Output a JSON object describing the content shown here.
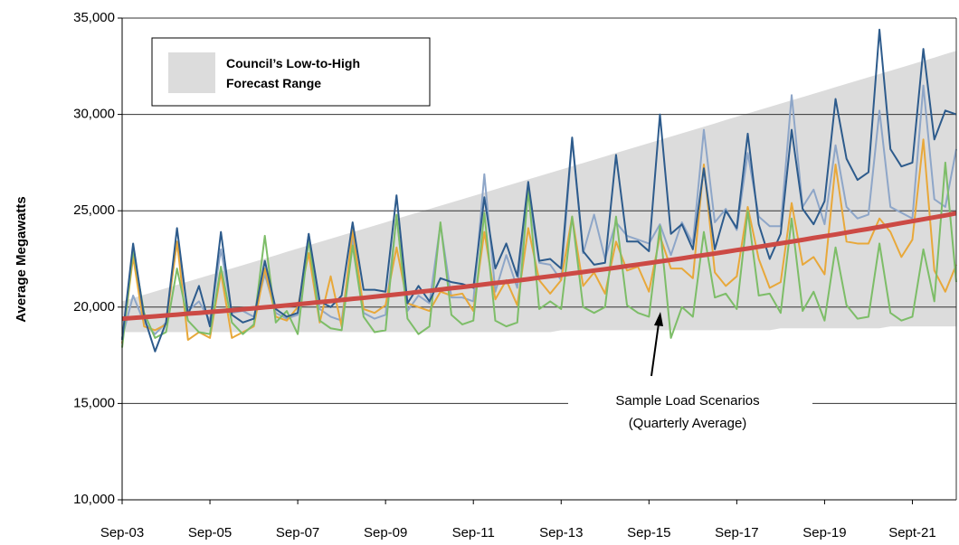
{
  "chart_data": {
    "type": "line",
    "y_label": "Average Megawatts",
    "categories": [
      "Sep-03",
      null,
      null,
      null,
      null,
      null,
      null,
      null,
      "Sep-05",
      null,
      null,
      null,
      null,
      null,
      null,
      null,
      "Sep-07",
      null,
      null,
      null,
      null,
      null,
      null,
      null,
      "Sep-09",
      null,
      null,
      null,
      null,
      null,
      null,
      null,
      "Sep-11",
      null,
      null,
      null,
      null,
      null,
      null,
      null,
      "Sep-13",
      null,
      null,
      null,
      null,
      null,
      null,
      null,
      "Sep-15",
      null,
      null,
      null,
      null,
      null,
      null,
      null,
      "Sep-17",
      null,
      null,
      null,
      null,
      null,
      null,
      null,
      "Sep-19",
      null,
      null,
      null,
      null,
      null,
      null,
      null,
      "Sept-21",
      null,
      null,
      null,
      null
    ],
    "ylim": [
      10000,
      35000
    ],
    "yticks": [
      {
        "value": 10000,
        "label": "10,000"
      },
      {
        "value": 15000,
        "label": "15,000"
      },
      {
        "value": 20000,
        "label": "20,000"
      },
      {
        "value": 25000,
        "label": "25,000"
      },
      {
        "value": 30000,
        "label": "30,000"
      },
      {
        "value": 35000,
        "label": "35,000"
      }
    ],
    "grid": true,
    "band": {
      "name": "Council’s Low-to-High Forecast Range",
      "color": "#dcdcdc",
      "low": [
        18700,
        18700,
        18700,
        18700,
        18700,
        18700,
        18700,
        18700,
        18700,
        18700,
        18700,
        18700,
        18700,
        18700,
        18700,
        18700,
        18700,
        18700,
        18700,
        18700,
        18700,
        18700,
        18700,
        18700,
        18700,
        18700,
        18700,
        18700,
        18700,
        18700,
        18700,
        18700,
        18700,
        18700,
        18700,
        18700,
        18700,
        18700,
        18700,
        18700,
        18800,
        18800,
        18800,
        18800,
        18800,
        18800,
        18800,
        18800,
        18800,
        18800,
        18800,
        18800,
        18800,
        18800,
        18800,
        18800,
        18800,
        18800,
        18800,
        18800,
        18900,
        18900,
        18900,
        18900,
        18900,
        18900,
        18900,
        18900,
        18900,
        18900,
        19000,
        19000,
        19000,
        19000,
        19000,
        19000,
        19000
      ],
      "high": [
        20300,
        20470,
        20640,
        20810,
        20980,
        21160,
        21330,
        21500,
        21670,
        21840,
        22010,
        22180,
        22350,
        22520,
        22690,
        22870,
        23040,
        23210,
        23380,
        23550,
        23720,
        23890,
        24060,
        24230,
        24400,
        24580,
        24750,
        24920,
        25090,
        25260,
        25430,
        25600,
        25770,
        25940,
        26110,
        26290,
        26460,
        26630,
        26800,
        26970,
        27140,
        27310,
        27480,
        27650,
        27820,
        28000,
        28170,
        28340,
        28510,
        28680,
        28850,
        29020,
        29190,
        29360,
        29530,
        29710,
        29880,
        30050,
        30220,
        30390,
        30560,
        30730,
        30900,
        31070,
        31240,
        31420,
        31590,
        31760,
        31930,
        32100,
        32270,
        32440,
        32610,
        32780,
        32950,
        33130,
        33300
      ]
    },
    "series": [
      {
        "color": "#8ea6c8",
        "line_width": 2,
        "values": [
          18400,
          20600,
          19200,
          18600,
          19200,
          23400,
          19800,
          20300,
          19300,
          23000,
          19700,
          19800,
          19500,
          21700,
          19700,
          19400,
          19600,
          23800,
          19900,
          19500,
          19300,
          23600,
          19700,
          19400,
          19600,
          24700,
          19800,
          20600,
          20200,
          24300,
          20500,
          20500,
          20300,
          26900,
          20800,
          22700,
          21000,
          26000,
          22300,
          22200,
          21400,
          28700,
          22800,
          24800,
          22500,
          24400,
          23700,
          23500,
          23300,
          24300,
          22700,
          24400,
          23300,
          29200,
          24400,
          25100,
          24000,
          28000,
          24700,
          24200,
          24200,
          31000,
          25200,
          26100,
          24300,
          28400,
          25200,
          24600,
          24800,
          30200,
          25200,
          24900,
          24600,
          31500,
          25600,
          25200,
          28200
        ]
      },
      {
        "color": "#e8a83a",
        "line_width": 2,
        "values": [
          18100,
          22600,
          19000,
          18800,
          19100,
          23400,
          18300,
          18700,
          18400,
          21800,
          18400,
          18700,
          19000,
          22000,
          19500,
          19300,
          20000,
          22800,
          19200,
          21600,
          19000,
          24000,
          19900,
          19700,
          20100,
          23100,
          20200,
          20000,
          19800,
          20800,
          20600,
          20700,
          19800,
          23900,
          20400,
          21400,
          20100,
          24100,
          21400,
          20700,
          21400,
          24700,
          21100,
          21800,
          20700,
          23400,
          21900,
          22100,
          20800,
          23700,
          22000,
          22000,
          21500,
          27400,
          21800,
          21100,
          21600,
          25200,
          22500,
          21000,
          21300,
          25400,
          22200,
          22600,
          21700,
          27400,
          23400,
          23300,
          23300,
          24600,
          23900,
          22600,
          23500,
          28700,
          21900,
          20800,
          22200
        ]
      },
      {
        "color": "#7dbd68",
        "line_width": 2,
        "values": [
          17900,
          23000,
          19700,
          18400,
          18700,
          22000,
          19300,
          18700,
          18600,
          22100,
          19200,
          18600,
          19100,
          23700,
          19200,
          19800,
          18600,
          23500,
          19300,
          18900,
          18800,
          23200,
          19500,
          18700,
          18800,
          24800,
          19400,
          18600,
          19000,
          24400,
          19600,
          19100,
          19300,
          24900,
          19300,
          19000,
          19200,
          26100,
          19900,
          20300,
          19900,
          24700,
          20000,
          19700,
          20000,
          24700,
          20100,
          19700,
          19500,
          24200,
          18400,
          20000,
          19500,
          23900,
          20500,
          20700,
          19900,
          25000,
          20600,
          20700,
          19700,
          24600,
          19800,
          20800,
          19300,
          23100,
          20100,
          19400,
          19500,
          23300,
          19700,
          19300,
          19500,
          23000,
          20300,
          27500,
          21300
        ]
      },
      {
        "color": "#2d5b8c",
        "line_width": 2,
        "values": [
          18300,
          23300,
          19500,
          17700,
          19200,
          24100,
          19600,
          21100,
          19000,
          23900,
          19600,
          19200,
          19400,
          22400,
          19900,
          19500,
          19700,
          23800,
          20300,
          20000,
          20600,
          24400,
          20900,
          20900,
          20800,
          25800,
          20200,
          21100,
          20300,
          21500,
          21300,
          21200,
          21000,
          25700,
          22000,
          23300,
          21600,
          26500,
          22400,
          22500,
          22000,
          28800,
          22900,
          22200,
          22300,
          27900,
          23400,
          23400,
          22900,
          30000,
          23800,
          24300,
          23000,
          27200,
          23000,
          25000,
          24100,
          29000,
          24300,
          22500,
          23800,
          29200,
          25100,
          24300,
          25500,
          30800,
          27700,
          26600,
          27000,
          34400,
          28200,
          27300,
          27500,
          33400,
          28700,
          30200,
          30000
        ]
      },
      {
        "color": "#cc4a45",
        "line_width": 5,
        "values": [
          19400,
          19440,
          19480,
          19520,
          19570,
          19610,
          19660,
          19700,
          19750,
          19790,
          19840,
          19890,
          19940,
          19990,
          20040,
          20090,
          20150,
          20200,
          20260,
          20310,
          20370,
          20430,
          20480,
          20540,
          20600,
          20660,
          20720,
          20790,
          20850,
          20910,
          20980,
          21040,
          21110,
          21180,
          21250,
          21310,
          21380,
          21450,
          21530,
          21600,
          21670,
          21750,
          21820,
          21900,
          21970,
          22050,
          22130,
          22210,
          22290,
          22370,
          22450,
          22530,
          22620,
          22700,
          22780,
          22870,
          22960,
          23040,
          23130,
          23220,
          23310,
          23400,
          23490,
          23590,
          23680,
          23770,
          23870,
          23970,
          24060,
          24160,
          24260,
          24360,
          24460,
          24560,
          24660,
          24760,
          24870
        ]
      }
    ],
    "annotation": {
      "lines": [
        "Sample Load Scenarios",
        "(Quarterly Average)"
      ]
    }
  }
}
